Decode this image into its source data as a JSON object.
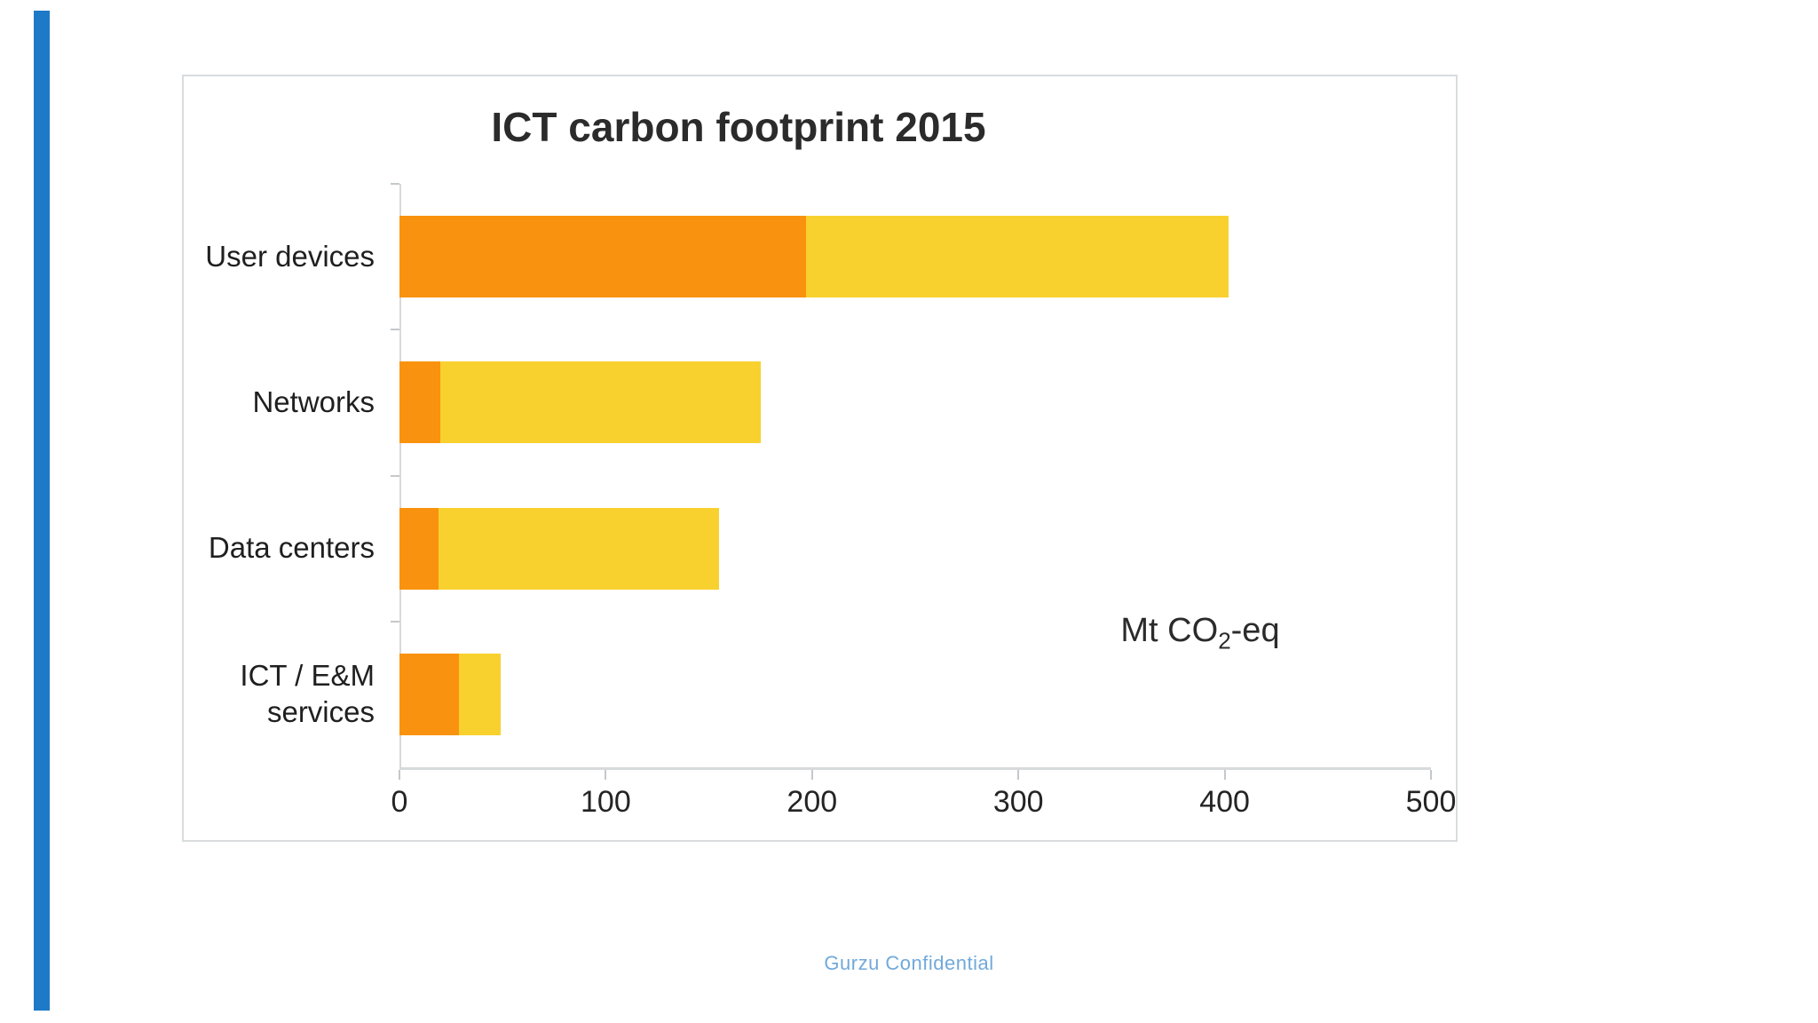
{
  "page": {
    "accent_strip_color": "#1e79c6",
    "footer": {
      "text": "Gurzu Confidential",
      "color": "#71a9db"
    }
  },
  "chart": {
    "title": "ICT carbon footprint 2015",
    "unit_label": {
      "prefix": "Mt CO",
      "subscript": "2",
      "suffix": "-eq"
    },
    "colors": {
      "orange": "#f9920e",
      "yellow": "#f8d12f",
      "axis_line": "#d7dadb",
      "tick": "#c4c8ca",
      "text": "#242424",
      "card_border": "#d9dcde"
    },
    "label_lines": [
      [
        "User devices"
      ],
      [
        "Networks"
      ],
      [
        "Data centers"
      ],
      [
        "ICT / E&M",
        "services"
      ]
    ]
  },
  "chart_data": {
    "type": "bar",
    "orientation": "horizontal",
    "stacked": true,
    "title": "ICT carbon footprint 2015",
    "categories": [
      "User devices",
      "Networks",
      "Data centers",
      "ICT / E&M services"
    ],
    "series": [
      {
        "name": "orange-segment",
        "color": "#f9920e",
        "values": [
          197,
          20,
          19,
          29
        ]
      },
      {
        "name": "yellow-segment",
        "color": "#f8d12f",
        "values": [
          205,
          155,
          136,
          20
        ]
      }
    ],
    "totals": [
      402,
      175,
      155,
      49
    ],
    "xlabel": "Mt CO2-eq",
    "x_ticks": [
      0,
      100,
      200,
      300,
      400,
      500
    ],
    "xlim": [
      0,
      500
    ],
    "grid": false,
    "legend": "none"
  }
}
